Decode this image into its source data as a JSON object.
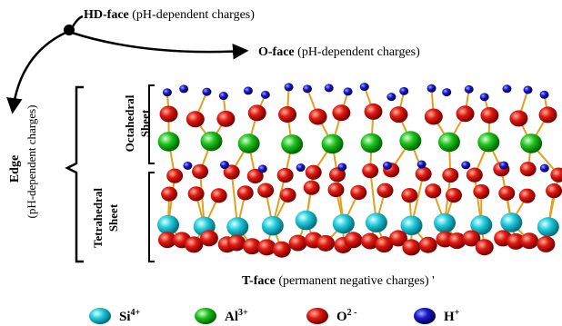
{
  "faces": {
    "hd": {
      "name": "HD-face",
      "desc": "(pH-dependent charges)"
    },
    "o": {
      "name": "O-face",
      "desc": "(pH-dependent charges)"
    },
    "edge": {
      "name": "Edge",
      "desc": "(pH-dependent charges)"
    },
    "t": {
      "name": "T-face",
      "desc": "(permanent negative charges)",
      "tick": "'"
    }
  },
  "sheets": {
    "octahedral": {
      "line1": "Octahedral",
      "line2": "Sheet"
    },
    "tetrahedral": {
      "line1": "Tetrahedral",
      "line2": "Sheet"
    }
  },
  "legend": [
    {
      "symbol": "Si",
      "charge": "4+",
      "color": "#22ccdd",
      "icon": "si-atom-icon"
    },
    {
      "symbol": "Al",
      "charge": "3+",
      "color": "#1fc41f",
      "icon": "al-atom-icon"
    },
    {
      "symbol": "O",
      "charge": "2 -",
      "color": "#dd1111",
      "icon": "o-atom-icon"
    },
    {
      "symbol": "H",
      "charge": "+",
      "color": "#1a1acc",
      "icon": "h-atom-icon"
    }
  ],
  "colors": {
    "bond": "#e0a020",
    "arrow": "#000000"
  }
}
